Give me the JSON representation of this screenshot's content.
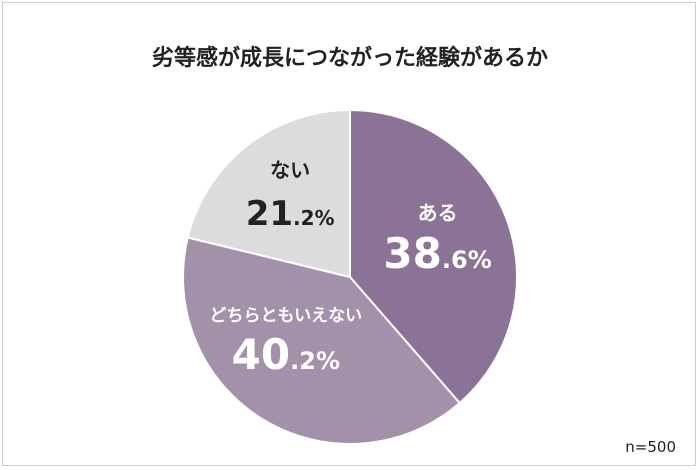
{
  "chart_data": {
    "type": "pie",
    "title": "劣等感が成長につながった経験があるか",
    "slices": [
      {
        "label": "ある",
        "value": 38.6,
        "big": "38",
        "small": ".6%",
        "color": "#8a7396",
        "text_color": "#ffffff"
      },
      {
        "label": "どちらともいえない",
        "value": 40.2,
        "big": "40",
        "small": ".2%",
        "color": "#a391a9",
        "text_color": "#ffffff"
      },
      {
        "label": "ない",
        "value": 21.2,
        "big": "21",
        "small": ".2%",
        "color": "#dcdcdc",
        "text_color": "#222222"
      }
    ],
    "note": "n=500",
    "legend": "none"
  }
}
